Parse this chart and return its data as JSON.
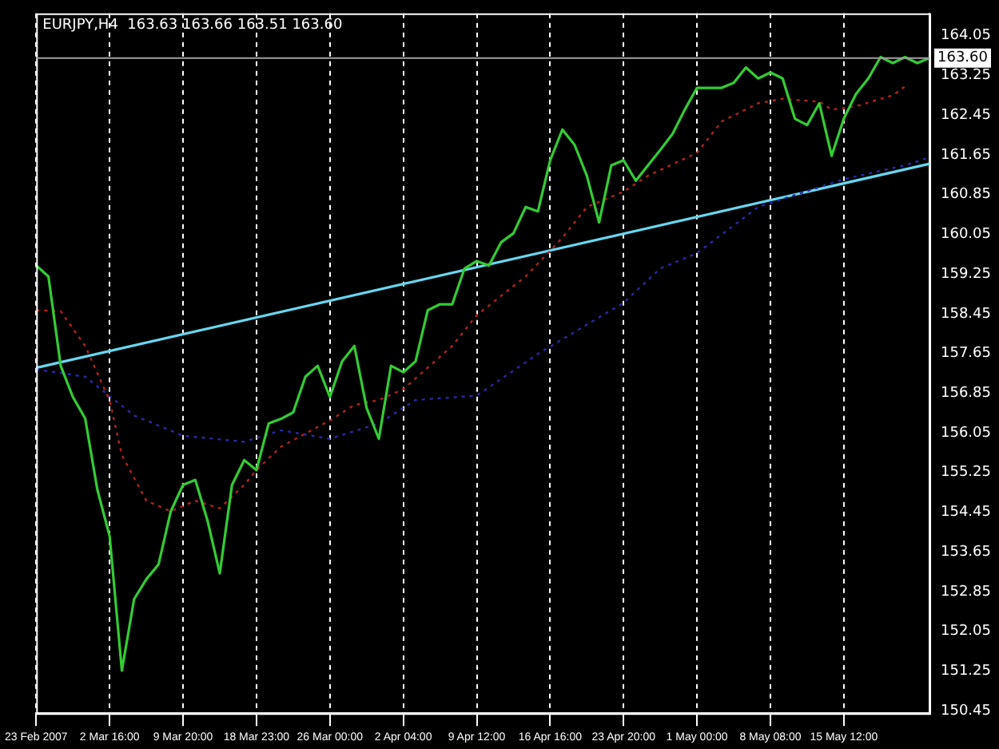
{
  "chart_data": {
    "type": "line",
    "title": "EURJPY,H4  163.63 163.66 163.51 163.60",
    "categories": [
      "23 Feb 2007",
      null,
      null,
      null,
      null,
      null,
      "2 Mar 16:00",
      null,
      null,
      null,
      null,
      null,
      "9 Mar 20:00",
      null,
      null,
      null,
      null,
      null,
      "18 Mar 23:00",
      null,
      null,
      null,
      null,
      null,
      "26 Mar 00:00",
      null,
      null,
      null,
      null,
      null,
      "2 Apr 04:00",
      null,
      null,
      null,
      null,
      null,
      "9 Apr 12:00",
      null,
      null,
      null,
      null,
      null,
      "16 Apr 16:00",
      null,
      null,
      null,
      null,
      null,
      "23 Apr 20:00",
      null,
      null,
      null,
      null,
      null,
      "1 May 00:00",
      null,
      null,
      null,
      null,
      null,
      "8 May 08:00",
      null,
      null,
      null,
      null,
      null,
      "15 May 12:00",
      null,
      null,
      null,
      null,
      null,
      null,
      null
    ],
    "series": [
      {
        "color": "#33cc33",
        "line_style": "solid",
        "values": [
          159.42,
          159.2,
          157.4,
          156.77,
          156.34,
          154.9,
          153.97,
          151.26,
          152.7,
          153.1,
          153.4,
          154.47,
          155.0,
          155.1,
          154.28,
          153.22,
          155.0,
          155.5,
          155.3,
          156.24,
          156.33,
          156.46,
          157.18,
          157.4,
          156.77,
          157.49,
          157.8,
          156.55,
          155.93,
          157.4,
          157.27,
          157.49,
          158.52,
          158.64,
          158.64,
          159.36,
          159.51,
          159.42,
          159.89,
          160.07,
          160.6,
          160.51,
          161.54,
          162.16,
          161.85,
          161.23,
          160.29,
          161.44,
          161.54,
          161.13,
          161.44,
          161.75,
          162.07,
          162.56,
          163.0,
          163.0,
          163.0,
          163.1,
          163.41,
          163.19,
          163.31,
          163.19,
          162.38,
          162.25,
          162.69,
          161.63,
          162.38,
          162.88,
          163.19,
          163.62,
          163.5,
          163.62,
          163.5,
          163.6
        ]
      },
      {
        "color": "#b02020",
        "line_style": "dotted",
        "values": [
          158.52,
          null,
          158.5,
          null,
          157.8,
          null,
          156.7,
          155.6,
          null,
          154.68,
          null,
          154.47,
          null,
          154.68,
          null,
          154.53,
          null,
          155.0,
          155.3,
          null,
          155.77,
          null,
          null,
          null,
          156.3,
          null,
          156.61,
          null,
          156.71,
          null,
          156.93,
          null,
          null,
          null,
          157.8,
          null,
          158.42,
          null,
          null,
          null,
          159.2,
          null,
          null,
          159.98,
          null,
          160.6,
          null,
          null,
          160.91,
          null,
          161.23,
          null,
          null,
          null,
          161.69,
          null,
          162.32,
          null,
          null,
          162.69,
          null,
          162.78,
          null,
          null,
          162.72,
          162.56,
          null,
          162.63,
          null,
          null,
          162.85,
          163.03,
          null,
          null
        ]
      },
      {
        "color": "#2828a8",
        "line_style": "dotted",
        "values": [
          157.33,
          null,
          null,
          null,
          157.18,
          null,
          null,
          null,
          156.4,
          null,
          null,
          null,
          155.99,
          null,
          null,
          null,
          null,
          155.87,
          null,
          null,
          156.1,
          null,
          null,
          null,
          155.93,
          null,
          null,
          null,
          156.24,
          null,
          null,
          156.71,
          null,
          null,
          null,
          null,
          156.8,
          null,
          null,
          null,
          null,
          157.64,
          null,
          null,
          null,
          null,
          null,
          null,
          158.67,
          null,
          null,
          159.36,
          null,
          null,
          159.67,
          null,
          null,
          null,
          null,
          160.6,
          null,
          160.76,
          null,
          null,
          null,
          null,
          161.16,
          null,
          null,
          null,
          null,
          161.44,
          null,
          161.6
        ]
      },
      {
        "color": "#66d8f0",
        "line_style": "solid",
        "values": [
          157.36,
          null,
          null,
          null,
          null,
          null,
          null,
          null,
          null,
          null,
          null,
          null,
          null,
          null,
          null,
          null,
          null,
          null,
          null,
          null,
          null,
          null,
          null,
          null,
          null,
          null,
          null,
          null,
          null,
          null,
          null,
          null,
          null,
          null,
          null,
          null,
          null,
          null,
          null,
          null,
          null,
          null,
          null,
          null,
          null,
          null,
          null,
          null,
          null,
          null,
          null,
          null,
          null,
          null,
          null,
          null,
          null,
          null,
          null,
          null,
          null,
          null,
          null,
          null,
          null,
          null,
          null,
          null,
          null,
          null,
          null,
          null,
          null,
          161.47
        ]
      }
    ],
    "ylim": [
      150.4,
      164.5
    ],
    "yticks": [
      150.45,
      151.25,
      152.05,
      152.85,
      153.65,
      154.45,
      155.25,
      156.05,
      156.85,
      157.65,
      158.45,
      159.25,
      160.05,
      160.85,
      161.65,
      162.45,
      163.25,
      164.05
    ],
    "ref_lines": [
      {
        "axis": "y",
        "value": 163.6,
        "label": "163.60",
        "color": "#a0a0a0"
      }
    ],
    "grid": "x",
    "marker": "none",
    "legend": false
  }
}
